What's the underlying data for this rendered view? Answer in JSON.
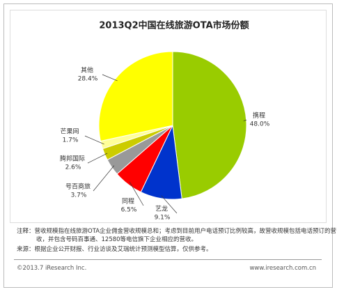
{
  "chart_data": {
    "type": "pie",
    "title": "2013Q2中国在线旅游OTA市场份额",
    "categories": [
      "携程",
      "艺龙",
      "同程",
      "号百商旅",
      "腾邦国际",
      "芒果网",
      "其他"
    ],
    "values": [
      48.0,
      9.1,
      6.5,
      3.7,
      2.6,
      1.7,
      28.4
    ],
    "value_labels": [
      "48.0%",
      "9.1%",
      "6.5%",
      "3.7%",
      "2.6%",
      "1.7%",
      "28.4%"
    ],
    "colors": [
      "#99cc00",
      "#0033cc",
      "#ff0000",
      "#999999",
      "#cccc00",
      "#ffff99",
      "#ffff00"
    ]
  },
  "notes": [
    "注释：营收规模指在线旅游OTA企业佣金营收规模总和；考虑到目前用户电话预订比例较高，故营收规模包括电话预订的营收，并包含号码百事通、12580等电信旗下企业相应的营收。",
    "来源：根据企业公开财报、行业访谈及艾瑞统计预测模型估算，仅供参考。"
  ],
  "footer": {
    "left": "©2013.7 iResearch Inc.",
    "right": "www.iresearch.com.cn"
  }
}
